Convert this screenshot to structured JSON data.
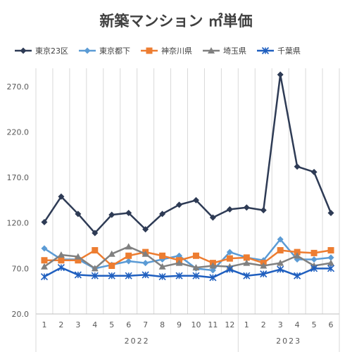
{
  "chart_data": {
    "type": "line",
    "title": "新築マンション ㎡単価",
    "categories": [
      "1",
      "2",
      "3",
      "4",
      "5",
      "6",
      "7",
      "8",
      "9",
      "10",
      "11",
      "12",
      "1",
      "2",
      "3",
      "4",
      "5",
      "6"
    ],
    "year_groups": [
      {
        "label": "2022",
        "start": 0,
        "end": 11
      },
      {
        "label": "2023",
        "start": 12,
        "end": 17
      }
    ],
    "ylim": [
      20,
      290
    ],
    "y_ticks": [
      "20.0",
      "70.0",
      "120.0",
      "170.0",
      "220.0",
      "270.0"
    ],
    "y_tick_values": [
      20,
      70,
      120,
      170,
      220,
      270
    ],
    "grid": "vertical",
    "legend_position": "top",
    "series": [
      {
        "name": "東京23区",
        "color": "#2e3b55",
        "marker": "diamond",
        "values": [
          121,
          149,
          130,
          109,
          129,
          131,
          113,
          130,
          140,
          145,
          126,
          135,
          137,
          134,
          283,
          182,
          176,
          131
        ]
      },
      {
        "name": "東京都下",
        "color": "#5b9bd5",
        "marker": "diamond",
        "values": [
          92,
          80,
          80,
          70,
          74,
          78,
          76,
          80,
          84,
          70,
          68,
          88,
          82,
          79,
          102,
          80,
          80,
          82
        ]
      },
      {
        "name": "神奈川県",
        "color": "#ed7d31",
        "marker": "square",
        "values": [
          79,
          79,
          79,
          90,
          73,
          84,
          88,
          84,
          79,
          84,
          76,
          81,
          82,
          76,
          90,
          88,
          87,
          90
        ]
      },
      {
        "name": "埼玉県",
        "color": "#808080",
        "marker": "triangle",
        "values": [
          72,
          85,
          83,
          70,
          86,
          94,
          86,
          72,
          76,
          71,
          73,
          72,
          76,
          73,
          76,
          84,
          73,
          76
        ]
      },
      {
        "name": "千葉県",
        "color": "#1f5fbf",
        "marker": "star",
        "values": [
          61,
          71,
          63,
          62,
          62,
          62,
          63,
          61,
          62,
          62,
          60,
          69,
          62,
          64,
          69,
          62,
          70,
          70
        ]
      }
    ]
  }
}
